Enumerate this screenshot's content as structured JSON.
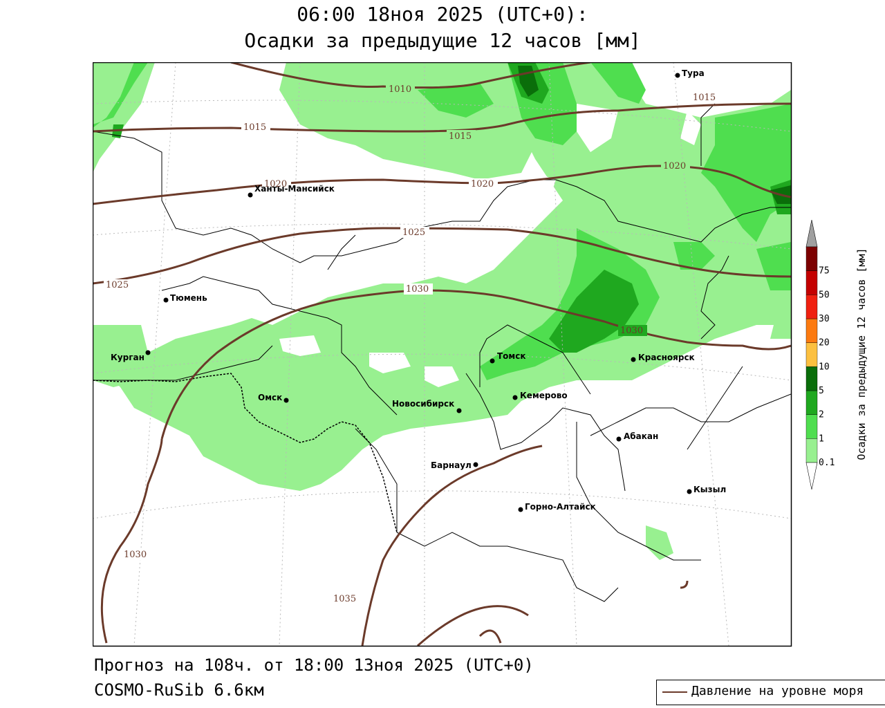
{
  "header": {
    "title_line1": "06:00 18ноя 2025 (UTC+0):",
    "title_line2": "Осадки за предыдущие 12 часов [мм]"
  },
  "footer": {
    "forecast": "Прогноз на 108ч. от 18:00 13ноя 2025 (UTC+0)",
    "model": "COSMO-RuSib 6.6км"
  },
  "legend": {
    "pressure_label": "Давление на уровне моря",
    "pressure_color": "#6b3a2a"
  },
  "colorbar": {
    "title": "Осадки за предыдущие 12 часов [мм]",
    "levels": [
      "0.1",
      "1",
      "2",
      "5",
      "10",
      "20",
      "30",
      "50",
      "75"
    ],
    "colors": [
      "#98f090",
      "#4fde4f",
      "#1fa81f",
      "#0a6e0a",
      "#fcc040",
      "#fc7a10",
      "#f02010",
      "#c40000",
      "#7c0000",
      "#a0a0a0"
    ]
  },
  "map": {
    "colors": {
      "light_green": "#98f090",
      "medium_green": "#4fde4f",
      "dark_green": "#1fa81f",
      "darker_green": "#0a6e0a",
      "isobar": "#6b3a2a",
      "border": "#000000",
      "grid": "#b8b8b8"
    },
    "cities": [
      {
        "name": "Тура"
      },
      {
        "name": "Ханты-Мансийск"
      },
      {
        "name": "Тюмень"
      },
      {
        "name": "Курган"
      },
      {
        "name": "Омск"
      },
      {
        "name": "Новосибирск"
      },
      {
        "name": "Томск"
      },
      {
        "name": "Кемерово"
      },
      {
        "name": "Красноярск"
      },
      {
        "name": "Абакан"
      },
      {
        "name": "Барнаул"
      },
      {
        "name": "Горно-Алтайск"
      },
      {
        "name": "Кызыл"
      }
    ],
    "isobar_labels": [
      "1010",
      "1015",
      "1015",
      "1015",
      "1020",
      "1020",
      "1020",
      "1025",
      "1025",
      "1030",
      "1030",
      "1030",
      "1035"
    ]
  }
}
